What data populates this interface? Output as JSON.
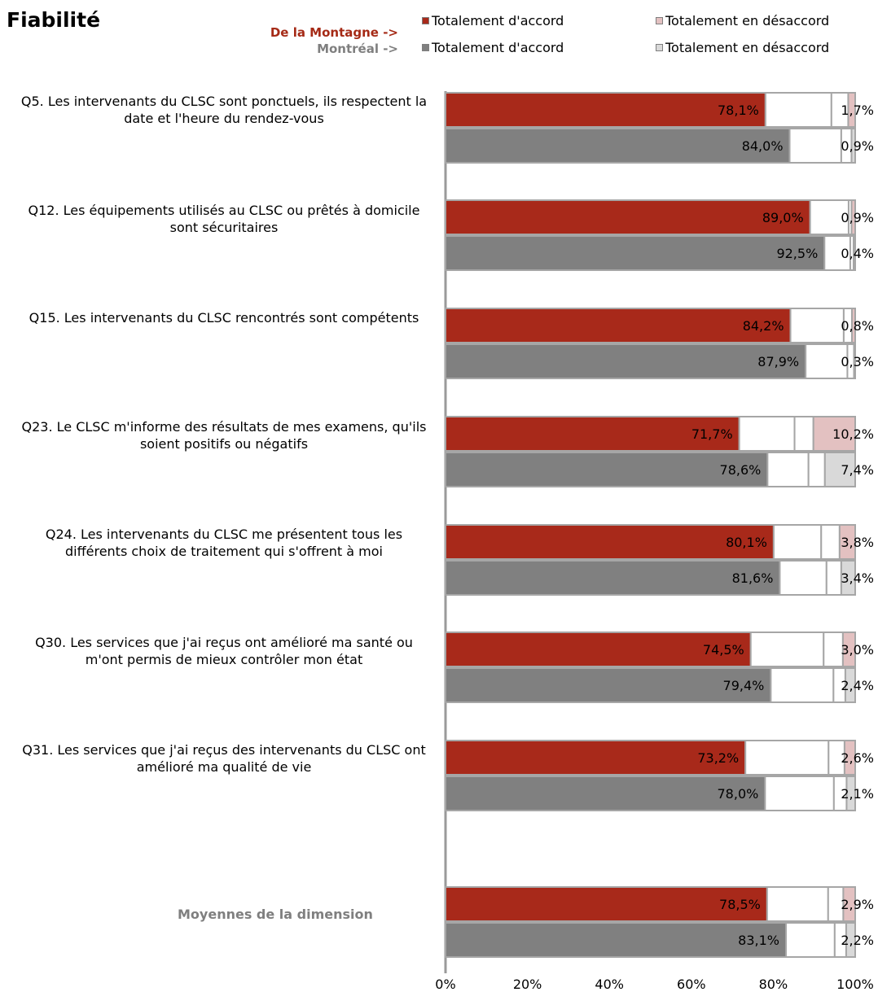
{
  "page": {
    "title": "Fiabilité"
  },
  "legend": {
    "rows": [
      {
        "series_label": "De la Montagne ->",
        "label_color": "#a52a16",
        "items": [
          {
            "label": "Totalement d'accord",
            "color": "#a8291a"
          },
          {
            "label": "Totalement en désaccord",
            "color": "#e3c1c1"
          }
        ]
      },
      {
        "series_label": "Montréal ->",
        "label_color": "#7f7f7f",
        "items": [
          {
            "label": "Totalement d'accord",
            "color": "#808080"
          },
          {
            "label": "Totalement en désaccord",
            "color": "#d9d9d9"
          }
        ]
      }
    ]
  },
  "chart_data": {
    "type": "bar",
    "orientation": "horizontal",
    "stacked": true,
    "xlim": [
      0,
      100
    ],
    "x_ticks": [
      "0%",
      "20%",
      "40%",
      "60%",
      "80%",
      "100%"
    ],
    "gridlines": false,
    "series": [
      {
        "name": "De la Montagne",
        "agree_color": "#a8291a",
        "disagree_color": "#e3c1c1"
      },
      {
        "name": "Montréal",
        "agree_color": "#808080",
        "disagree_color": "#d9d9d9"
      }
    ],
    "categories": [
      {
        "label": "Q5. Les intervenants du CLSC sont ponctuels, ils respectent la date et l'heure du rendez-vous",
        "bars": [
          {
            "agree": 78.1,
            "agree_label": "78,1%",
            "mid": 16.1,
            "disagree": 1.7,
            "disagree_label": "1,7%"
          },
          {
            "agree": 84.0,
            "agree_label": "84,0%",
            "mid": 12.6,
            "disagree": 0.9,
            "disagree_label": "0,9%"
          }
        ]
      },
      {
        "label": "Q12. Les équipements utilisés au CLSC ou prêtés à domicile sont sécuritaires",
        "bars": [
          {
            "agree": 89.0,
            "agree_label": "89,0%",
            "mid": 9.4,
            "disagree": 0.9,
            "disagree_label": "0,9%"
          },
          {
            "agree": 92.5,
            "agree_label": "92,5%",
            "mid": 6.3,
            "disagree": 0.4,
            "disagree_label": "0,4%"
          }
        ]
      },
      {
        "label": "Q15. Les intervenants du CLSC rencontrés sont compétents",
        "bars": [
          {
            "agree": 84.2,
            "agree_label": "84,2%",
            "mid": 13.0,
            "disagree": 0.8,
            "disagree_label": "0,8%"
          },
          {
            "agree": 87.9,
            "agree_label": "87,9%",
            "mid": 10.2,
            "disagree": 0.3,
            "disagree_label": "0,3%"
          }
        ]
      },
      {
        "label": "Q23. Le CLSC m'informe des résultats de mes examens, qu'ils soient positifs ou négatifs",
        "bars": [
          {
            "agree": 71.7,
            "agree_label": "71,7%",
            "mid": 13.5,
            "disagree": 10.2,
            "disagree_label": "10,2%"
          },
          {
            "agree": 78.6,
            "agree_label": "78,6%",
            "mid": 10.0,
            "disagree": 7.4,
            "disagree_label": "7,4%"
          }
        ]
      },
      {
        "label": "Q24. Les intervenants du CLSC me présentent tous les différents choix de traitement qui s'offrent à moi",
        "bars": [
          {
            "agree": 80.1,
            "agree_label": "80,1%",
            "mid": 11.6,
            "disagree": 3.8,
            "disagree_label": "3,8%"
          },
          {
            "agree": 81.6,
            "agree_label": "81,6%",
            "mid": 11.4,
            "disagree": 3.4,
            "disagree_label": "3,4%"
          }
        ]
      },
      {
        "label": "Q30. Les services que j'ai reçus ont amélioré ma santé ou m'ont permis de mieux contrôler mon état",
        "bars": [
          {
            "agree": 74.5,
            "agree_label": "74,5%",
            "mid": 17.8,
            "disagree": 3.0,
            "disagree_label": "3,0%"
          },
          {
            "agree": 79.4,
            "agree_label": "79,4%",
            "mid": 15.3,
            "disagree": 2.4,
            "disagree_label": "2,4%"
          }
        ]
      },
      {
        "label": "Q31. Les services que j'ai reçus des intervenants du CLSC ont amélioré ma qualité de vie",
        "bars": [
          {
            "agree": 73.2,
            "agree_label": "73,2%",
            "mid": 20.3,
            "disagree": 2.6,
            "disagree_label": "2,6%"
          },
          {
            "agree": 78.0,
            "agree_label": "78,0%",
            "mid": 16.8,
            "disagree": 2.1,
            "disagree_label": "2,1%"
          }
        ]
      },
      {
        "label": "Moyennes de la dimension",
        "is_average": true,
        "bars": [
          {
            "agree": 78.5,
            "agree_label": "78,5%",
            "mid": 14.9,
            "disagree": 2.9,
            "disagree_label": "2,9%"
          },
          {
            "agree": 83.1,
            "agree_label": "83,1%",
            "mid": 11.9,
            "disagree": 2.2,
            "disagree_label": "2,2%"
          }
        ]
      }
    ]
  }
}
